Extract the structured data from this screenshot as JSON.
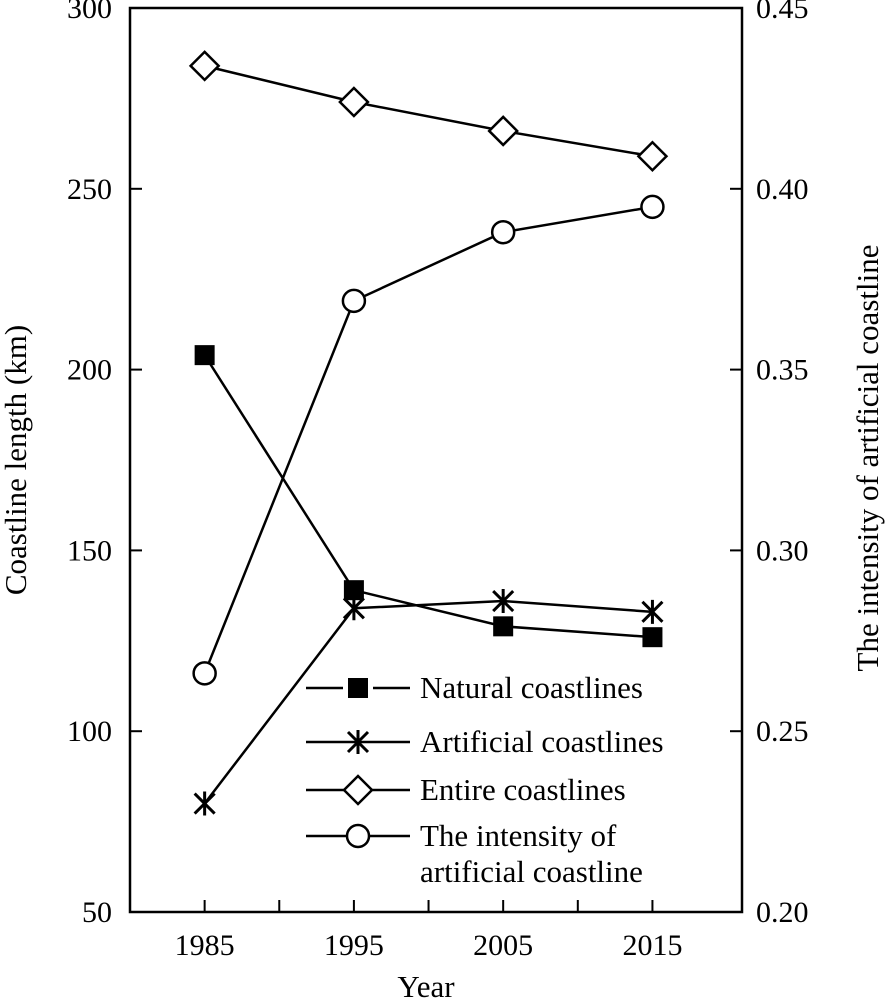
{
  "chart_data": {
    "type": "line",
    "title": "",
    "xlabel": "Year",
    "ylabel": "Coastline length (km)",
    "y2label": "The intensity of artificial coastline",
    "x_ticks": [
      "1985",
      "1995",
      "2005",
      "2015"
    ],
    "xlim": [
      1980,
      2021
    ],
    "ylim": [
      50,
      300
    ],
    "y_ticks": [
      "50",
      "100",
      "150",
      "200",
      "250",
      "300"
    ],
    "y2lim": [
      0.2,
      0.45
    ],
    "y2_ticks": [
      "0.20",
      "0.25",
      "0.30",
      "0.35",
      "0.40",
      "0.45"
    ],
    "grid": false,
    "legend_position": "bottom-right",
    "series": [
      {
        "name": "Natural coastlines",
        "axis": "left",
        "marker": "filled-square",
        "x": [
          1985,
          1995,
          2005,
          2015
        ],
        "values": [
          204,
          139,
          129,
          126
        ]
      },
      {
        "name": "Artificial coastlines",
        "axis": "left",
        "marker": "asterisk",
        "x": [
          1985,
          1995,
          2005,
          2015
        ],
        "values": [
          80,
          134,
          136,
          133
        ]
      },
      {
        "name": "Entire coastlines",
        "axis": "left",
        "marker": "open-diamond",
        "x": [
          1985,
          1995,
          2005,
          2015
        ],
        "values": [
          284,
          274,
          266,
          259
        ]
      },
      {
        "name": "The intensity of artificial coastline",
        "name_lines": [
          "The intensity of",
          "artificial coastline"
        ],
        "axis": "right",
        "marker": "open-circle",
        "x": [
          1985,
          1995,
          2005,
          2015
        ],
        "values": [
          0.266,
          0.369,
          0.388,
          0.395
        ]
      }
    ]
  }
}
